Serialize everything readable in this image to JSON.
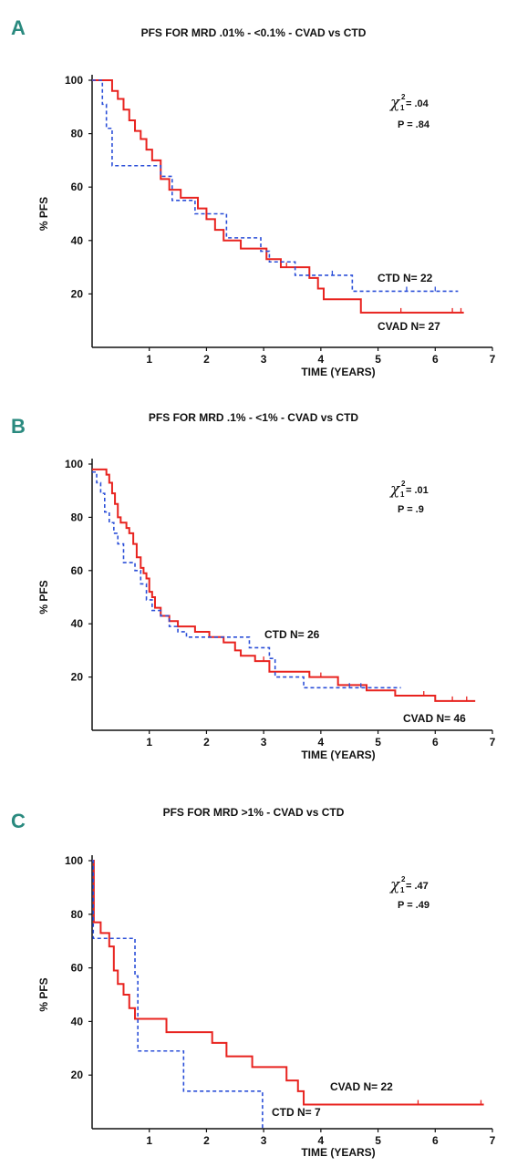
{
  "chart_data": [
    {
      "type": "line",
      "panel": "A",
      "title": "PFS FOR MRD .01% - <0.1% - CVAD vs CTD",
      "xlabel": "TIME (YEARS)",
      "ylabel": "% PFS",
      "xlim": [
        0,
        7
      ],
      "ylim": [
        0,
        100
      ],
      "xticks": [
        "1",
        "2",
        "3",
        "4",
        "5",
        "6",
        "7"
      ],
      "yticks": [
        "20",
        "40",
        "60",
        "80",
        "100"
      ],
      "stat_chi": ".04",
      "stat_p": "P = .84",
      "series": [
        {
          "name": "CVAD N= 27",
          "color": "#e8231f",
          "style": "solid",
          "x": [
            0,
            0.28,
            0.35,
            0.45,
            0.55,
            0.65,
            0.75,
            0.85,
            0.95,
            1.05,
            1.2,
            1.35,
            1.55,
            1.75,
            1.85,
            2.0,
            2.15,
            2.3,
            2.6,
            2.85,
            3.05,
            3.3,
            3.6,
            3.8,
            3.95,
            4.05,
            4.7,
            5.4,
            6.3,
            6.5
          ],
          "y": [
            100,
            100,
            96,
            93,
            89,
            85,
            81,
            78,
            74,
            70,
            63,
            59,
            56,
            56,
            52,
            48,
            44,
            40,
            37,
            37,
            33,
            30,
            30,
            26,
            22,
            18,
            13,
            13,
            13,
            13
          ],
          "censored_x": [
            3.4,
            5.4,
            6.3,
            6.45
          ]
        },
        {
          "name": "CTD N= 22",
          "color": "#2b4fd8",
          "style": "dashed",
          "x": [
            0,
            0.18,
            0.25,
            0.35,
            0.9,
            1.2,
            1.4,
            1.8,
            2.35,
            2.95,
            3.1,
            3.55,
            4.05,
            4.55,
            5.8,
            6.4
          ],
          "y": [
            100,
            91,
            82,
            68,
            68,
            64,
            55,
            50,
            41,
            36,
            32,
            27,
            27,
            21,
            21,
            21
          ],
          "censored_x": [
            4.2,
            5.5,
            6.0
          ]
        }
      ]
    },
    {
      "type": "line",
      "panel": "B",
      "title": "PFS FOR MRD .1% - <1% - CVAD vs CTD",
      "xlabel": "TIME (YEARS)",
      "ylabel": "% PFS",
      "xlim": [
        0,
        7
      ],
      "ylim": [
        0,
        100
      ],
      "xticks": [
        "1",
        "2",
        "3",
        "4",
        "5",
        "6",
        "7"
      ],
      "yticks": [
        "20",
        "40",
        "60",
        "80",
        "100"
      ],
      "stat_chi": ".01",
      "stat_p": "P = .9",
      "series": [
        {
          "name": "CVAD N= 46",
          "color": "#e8231f",
          "style": "solid",
          "x": [
            0,
            0.25,
            0.3,
            0.35,
            0.4,
            0.45,
            0.5,
            0.6,
            0.65,
            0.72,
            0.78,
            0.85,
            0.9,
            0.95,
            1.0,
            1.05,
            1.1,
            1.2,
            1.35,
            1.5,
            1.8,
            2.05,
            2.3,
            2.5,
            2.6,
            2.85,
            3.1,
            3.5,
            3.8,
            4.3,
            4.8,
            5.3,
            6.0,
            6.7
          ],
          "y": [
            98,
            96,
            93,
            89,
            85,
            80,
            78,
            76,
            74,
            70,
            65,
            61,
            59,
            57,
            52,
            50,
            46,
            43,
            41,
            39,
            37,
            35,
            33,
            30,
            28,
            26,
            22,
            22,
            20,
            17,
            15,
            13,
            11,
            11
          ],
          "censored_x": [
            3.0,
            4.0,
            5.8,
            6.3,
            6.55
          ]
        },
        {
          "name": "CTD N= 26",
          "color": "#2b4fd8",
          "style": "dashed",
          "x": [
            0,
            0.08,
            0.15,
            0.22,
            0.3,
            0.38,
            0.45,
            0.55,
            0.75,
            0.85,
            0.95,
            1.05,
            1.2,
            1.35,
            1.5,
            1.65,
            2.0,
            2.4,
            2.75,
            3.1,
            3.2,
            3.3,
            3.7,
            4.0,
            4.3,
            4.7,
            5.3,
            5.4
          ],
          "y": [
            97,
            93,
            89,
            82,
            78,
            74,
            70,
            63,
            60,
            55,
            49,
            45,
            43,
            39,
            37,
            35,
            35,
            35,
            31,
            27,
            20,
            20,
            16,
            16,
            16,
            16,
            16,
            16
          ],
          "censored_x": [
            4.5,
            4.7
          ]
        }
      ]
    },
    {
      "type": "line",
      "panel": "C",
      "title": "PFS FOR MRD >1% - CVAD vs CTD",
      "xlabel": "TIME (YEARS)",
      "ylabel": "% PFS",
      "xlim": [
        0,
        7
      ],
      "ylim": [
        0,
        100
      ],
      "xticks": [
        "1",
        "2",
        "3",
        "4",
        "5",
        "6",
        "7"
      ],
      "yticks": [
        "20",
        "40",
        "60",
        "80",
        "100"
      ],
      "stat_chi": ".47",
      "stat_p": "P = .49",
      "series": [
        {
          "name": "CVAD N= 22",
          "color": "#e8231f",
          "style": "solid",
          "x": [
            0,
            0.03,
            0.15,
            0.3,
            0.38,
            0.45,
            0.55,
            0.65,
            0.75,
            1.3,
            2.1,
            2.35,
            2.8,
            3.4,
            3.6,
            3.7,
            5.7,
            6.85
          ],
          "y": [
            100,
            77,
            73,
            68,
            59,
            54,
            50,
            45,
            41,
            36,
            32,
            27,
            23,
            18,
            14,
            9,
            9,
            9
          ],
          "censored_x": [
            5.7,
            6.8
          ]
        },
        {
          "name": "CTD N= 7",
          "color": "#2b4fd8",
          "style": "dashed",
          "x": [
            0,
            0.02,
            0.7,
            0.75,
            0.8,
            1.6,
            2.95,
            2.98
          ],
          "y": [
            100,
            71,
            71,
            57,
            29,
            14,
            14,
            0
          ],
          "censored_x": []
        }
      ]
    }
  ]
}
